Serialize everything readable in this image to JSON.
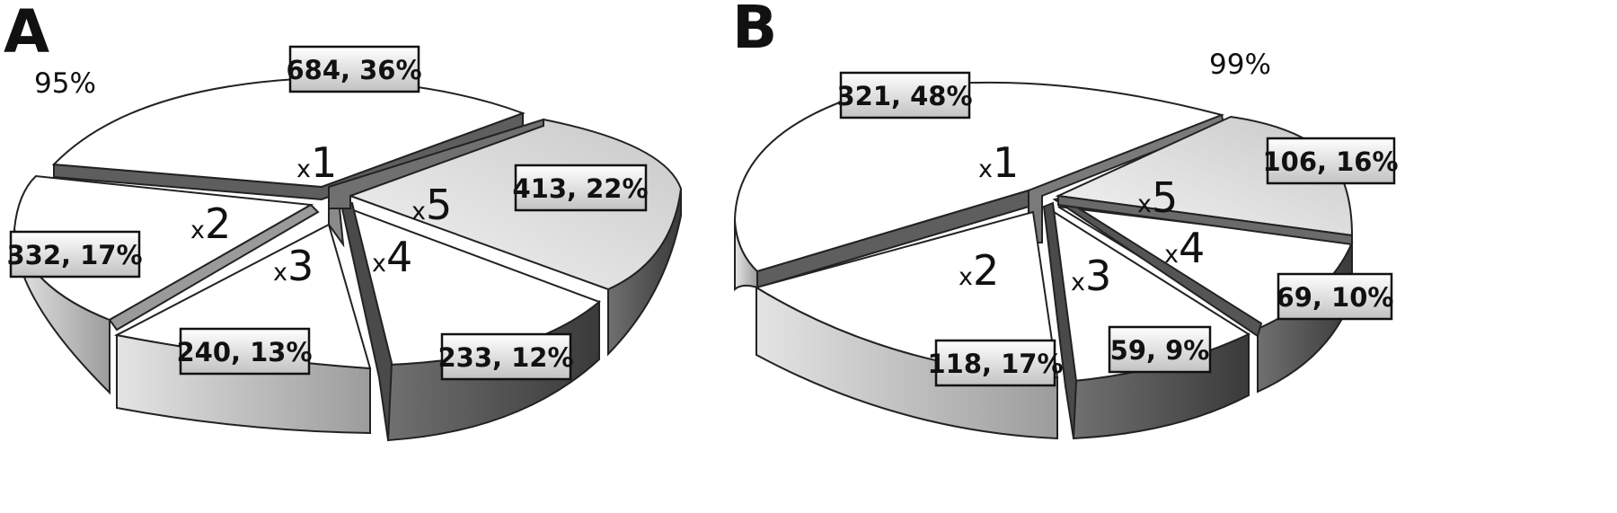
{
  "chart_data": [
    {
      "type": "pie",
      "panel": "A",
      "total_label": "95%",
      "categories": [
        "x1",
        "x2",
        "x3",
        "x4",
        "x5"
      ],
      "values": [
        684,
        332,
        240,
        233,
        413
      ],
      "percents": [
        "36%",
        "17%",
        "13%",
        "12%",
        "22%"
      ],
      "data_labels": [
        "684, 36%",
        "332, 17%",
        "240, 13%",
        "233, 12%",
        "413, 22%"
      ],
      "style": "3d-exploded"
    },
    {
      "type": "pie",
      "panel": "B",
      "total_label": "99%",
      "categories": [
        "x1",
        "x2",
        "x3",
        "x4",
        "x5"
      ],
      "values": [
        321,
        118,
        59,
        69,
        106
      ],
      "percents": [
        "48%",
        "17%",
        "9%",
        "10%",
        "16%"
      ],
      "data_labels": [
        "321, 48%",
        "118, 17%",
        "59, 9%",
        "69, 10%",
        "106, 16%"
      ],
      "style": "3d-exploded"
    }
  ],
  "colors": {
    "x1": "#ffffff",
    "x2": "#f7f7f7",
    "x3": "#fbfbfb",
    "x4": "#ffffff",
    "x5": "#d9d9d9",
    "wall_light": "#c4c4c4",
    "wall_dark": "#5a5a5a",
    "label_fill_top": "#ffffff",
    "label_fill_bottom": "#c8c8c8",
    "outline": "#222222"
  }
}
